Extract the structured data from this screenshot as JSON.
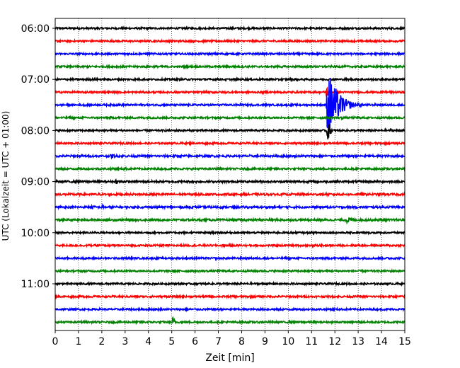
{
  "chart_data": {
    "type": "line",
    "title": "",
    "xlabel": "Zeit  [min]",
    "ylabel": "UTC (Lokalzeit = UTC + 01:00)",
    "xlim": [
      0,
      15
    ],
    "x_ticks": [
      "0",
      "1",
      "2",
      "3",
      "4",
      "5",
      "6",
      "7",
      "8",
      "9",
      "10",
      "11",
      "12",
      "13",
      "14",
      "15"
    ],
    "y_ticks": [
      "06:00",
      "07:00",
      "08:00",
      "09:00",
      "10:00",
      "11:00"
    ],
    "row_interval_min": 15,
    "start_time": "06:00",
    "grid": "vertical dotted",
    "trace_colors": [
      "#000000",
      "#ff0000",
      "#0000ff",
      "#008000"
    ],
    "traces": [
      {
        "time": "06:00",
        "color": "#000000",
        "amplitude": 0.07,
        "events": []
      },
      {
        "time": "06:15",
        "color": "#ff0000",
        "amplitude": 0.07,
        "events": [
          {
            "t": 2.4,
            "amp": 0.12,
            "dur": 0.3
          }
        ]
      },
      {
        "time": "06:30",
        "color": "#0000ff",
        "amplitude": 0.07,
        "events": [
          {
            "t": 3.0,
            "amp": 0.12,
            "dur": 0.3
          }
        ]
      },
      {
        "time": "06:45",
        "color": "#008000",
        "amplitude": 0.07,
        "events": []
      },
      {
        "time": "07:00",
        "color": "#000000",
        "amplitude": 0.07,
        "events": []
      },
      {
        "time": "07:15",
        "color": "#ff0000",
        "amplitude": 0.07,
        "events": [
          {
            "t": 11.65,
            "amp": 0.5,
            "dur": 0.3
          }
        ]
      },
      {
        "time": "07:30",
        "color": "#0000ff",
        "amplitude": 0.07,
        "events": [
          {
            "t": 11.7,
            "amp": 3.0,
            "dur": 1.2
          },
          {
            "t": 13.0,
            "amp": 0.2,
            "dur": 0.6
          }
        ]
      },
      {
        "time": "07:45",
        "color": "#008000",
        "amplitude": 0.07,
        "events": [
          {
            "t": 12.3,
            "amp": 0.15,
            "dur": 0.5
          }
        ]
      },
      {
        "time": "08:00",
        "color": "#000000",
        "amplitude": 0.07,
        "events": [
          {
            "t": 11.7,
            "amp": 0.9,
            "dur": 0.3
          },
          {
            "t": 14.4,
            "amp": 0.18,
            "dur": 0.3
          }
        ]
      },
      {
        "time": "08:15",
        "color": "#ff0000",
        "amplitude": 0.07,
        "events": []
      },
      {
        "time": "08:30",
        "color": "#0000ff",
        "amplitude": 0.08,
        "events": [
          {
            "t": 2.4,
            "amp": 0.2,
            "dur": 0.8
          }
        ]
      },
      {
        "time": "08:45",
        "color": "#008000",
        "amplitude": 0.07,
        "events": [
          {
            "t": 3.0,
            "amp": 0.12,
            "dur": 1.0
          }
        ]
      },
      {
        "time": "09:00",
        "color": "#000000",
        "amplitude": 0.08,
        "events": [
          {
            "t": 2.6,
            "amp": 0.2,
            "dur": 0.4
          },
          {
            "t": 5.2,
            "amp": 0.12,
            "dur": 0.4
          }
        ]
      },
      {
        "time": "09:15",
        "color": "#ff0000",
        "amplitude": 0.08,
        "events": [
          {
            "t": 1.8,
            "amp": 0.15,
            "dur": 0.5
          }
        ]
      },
      {
        "time": "09:30",
        "color": "#0000ff",
        "amplitude": 0.08,
        "events": [
          {
            "t": 1.6,
            "amp": 0.18,
            "dur": 0.5
          },
          {
            "t": 2.0,
            "amp": 0.2,
            "dur": 0.4
          }
        ]
      },
      {
        "time": "09:45",
        "color": "#008000",
        "amplitude": 0.08,
        "events": [
          {
            "t": 12.5,
            "amp": 0.28,
            "dur": 0.9
          }
        ]
      },
      {
        "time": "10:00",
        "color": "#000000",
        "amplitude": 0.07,
        "events": []
      },
      {
        "time": "10:15",
        "color": "#ff0000",
        "amplitude": 0.07,
        "events": []
      },
      {
        "time": "10:30",
        "color": "#0000ff",
        "amplitude": 0.07,
        "events": []
      },
      {
        "time": "10:45",
        "color": "#008000",
        "amplitude": 0.07,
        "events": []
      },
      {
        "time": "11:00",
        "color": "#000000",
        "amplitude": 0.07,
        "events": []
      },
      {
        "time": "11:15",
        "color": "#ff0000",
        "amplitude": 0.07,
        "events": []
      },
      {
        "time": "11:30",
        "color": "#0000ff",
        "amplitude": 0.07,
        "events": [
          {
            "t": 3.2,
            "amp": 0.12,
            "dur": 0.3
          }
        ]
      },
      {
        "time": "11:45",
        "color": "#008000",
        "amplitude": 0.07,
        "events": [
          {
            "t": 5.05,
            "amp": 0.45,
            "dur": 0.25
          }
        ]
      }
    ]
  }
}
